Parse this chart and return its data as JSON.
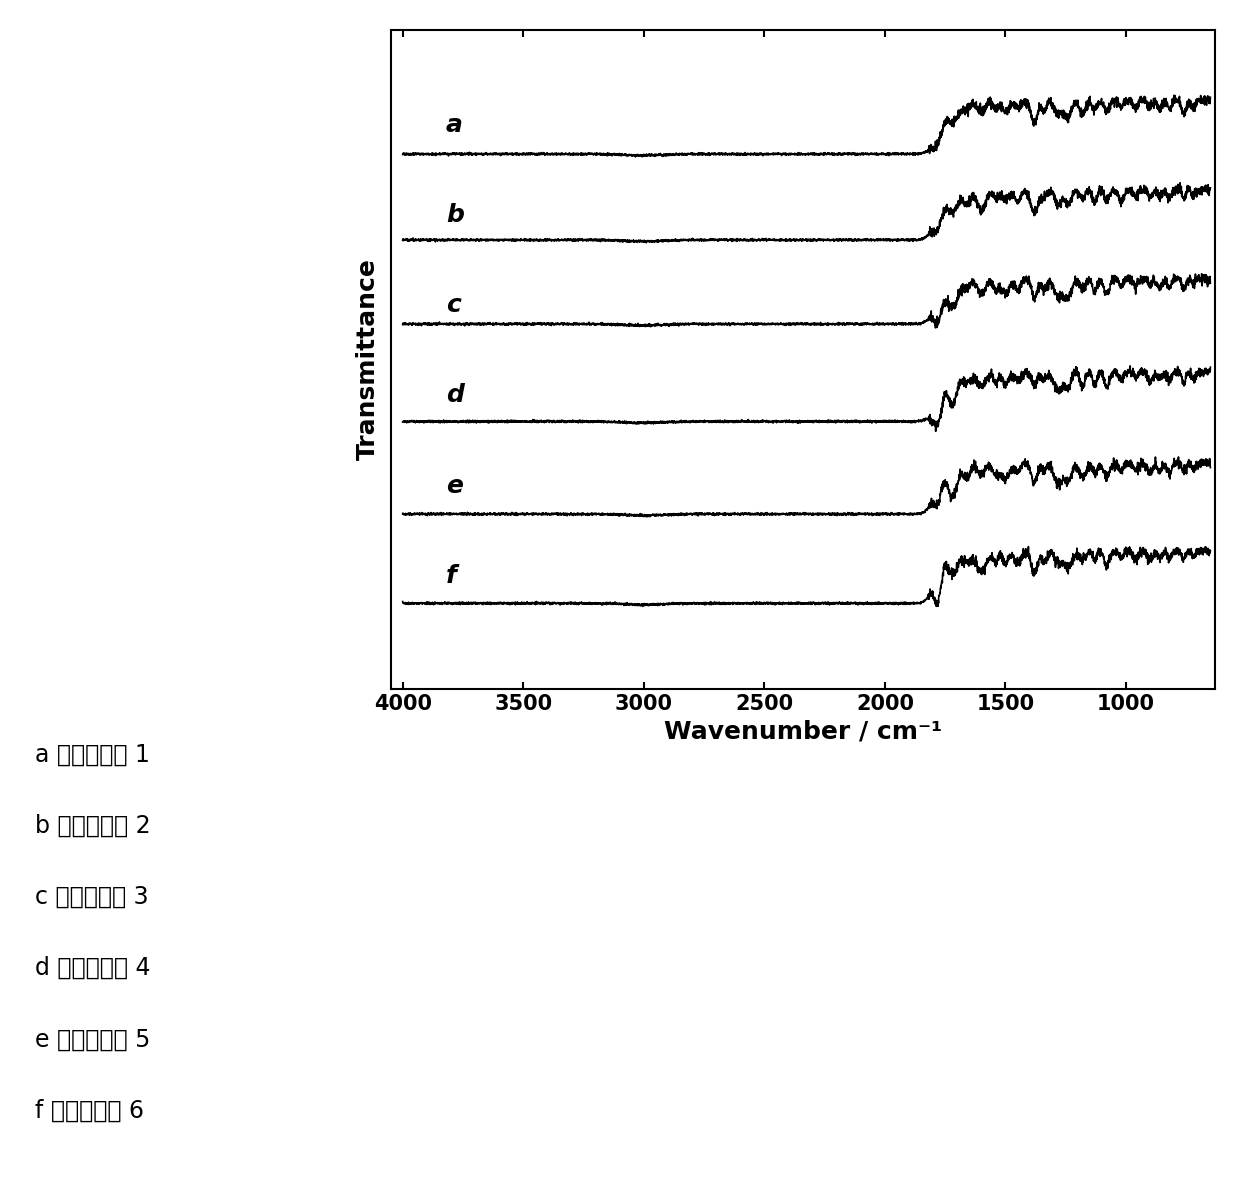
{
  "x_min": 650,
  "x_max": 4000,
  "xlabel": "Wavenumber / cm⁻¹",
  "ylabel": "Transmittance",
  "xticks": [
    4000,
    3500,
    3000,
    2500,
    2000,
    1500,
    1000
  ],
  "labels": [
    "a",
    "b",
    "c",
    "d",
    "e",
    "f"
  ],
  "legend_lines": [
    "a 对应实施例 1",
    "b 对应实施例 2",
    "c 对应实施例 3",
    "d 对应实施例 4",
    "e 对应实施例 5",
    "f 对应实施例 6"
  ],
  "background_color": "#ffffff",
  "line_color": "#000000",
  "label_fontsize": 18,
  "tick_fontsize": 15,
  "legend_fontsize": 17
}
